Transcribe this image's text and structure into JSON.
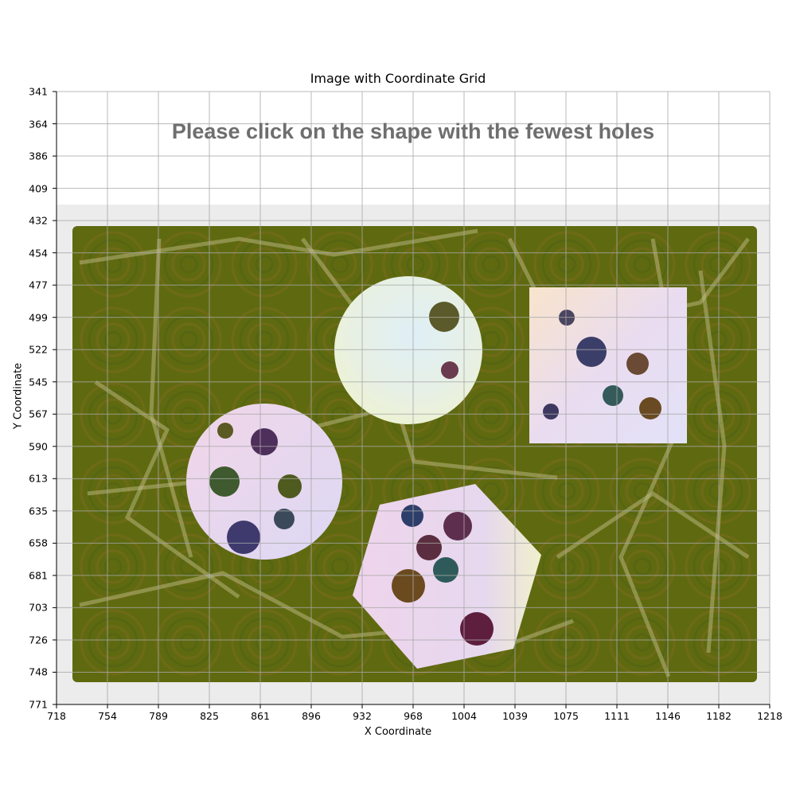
{
  "title": "Image with Coordinate Grid",
  "prompt_text": "Please click on the shape with the fewest holes",
  "x_axis": {
    "label": "X Coordinate",
    "ticks": [
      "718",
      "754",
      "789",
      "825",
      "861",
      "896",
      "932",
      "968",
      "1004",
      "1039",
      "1075",
      "1111",
      "1146",
      "1182",
      "1218"
    ]
  },
  "y_axis": {
    "label": "Y Coordinate",
    "ticks": [
      "341",
      "364",
      "386",
      "409",
      "432",
      "454",
      "477",
      "499",
      "522",
      "545",
      "567",
      "590",
      "613",
      "635",
      "658",
      "681",
      "703",
      "726",
      "748",
      "771"
    ]
  },
  "colors": {
    "board_background": "#5f6a10",
    "board_frame": "#ececec",
    "grid": "#a8a8a8",
    "prompt_text": "#6e6e6e"
  },
  "shapes": [
    {
      "name": "circle-top",
      "kind": "circle",
      "hole_count": 2
    },
    {
      "name": "square-right",
      "kind": "square",
      "hole_count": 6
    },
    {
      "name": "circle-left",
      "kind": "circle",
      "hole_count": 7
    },
    {
      "name": "heptagon-bottom",
      "kind": "polygon",
      "hole_count": 7
    }
  ]
}
